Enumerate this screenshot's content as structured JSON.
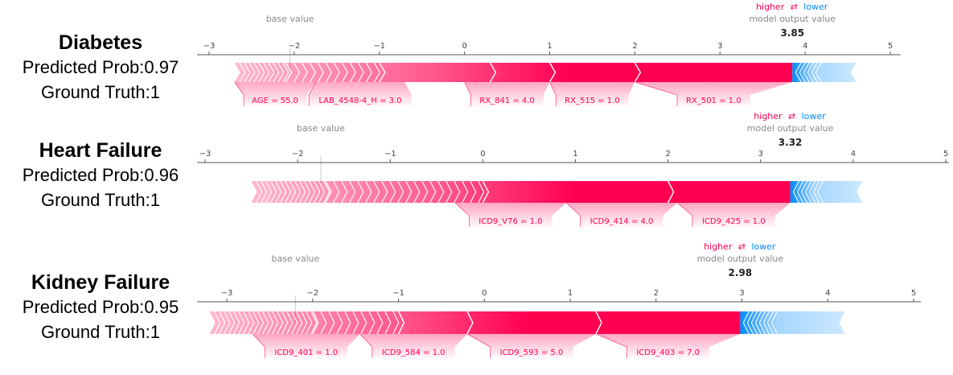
{
  "colors": {
    "positive": "#ff0051",
    "negative": "#008bfb",
    "axis": "#555555",
    "muted": "#888888"
  },
  "legend": {
    "higher": "higher",
    "arrow": "⇄",
    "lower": "lower"
  },
  "axis_labels": {
    "base": "base value",
    "output": "model output value"
  },
  "chart_data": [
    {
      "type": "force",
      "title": "Diabetes",
      "prob_text": "Predicted Prob:0.97",
      "truth_text": "Ground Truth:1",
      "output_value": 3.85,
      "output_label": "3.85",
      "base_value": -2.05,
      "ticks": [
        -3,
        -2,
        -1,
        0,
        1,
        2,
        3,
        4,
        5
      ],
      "tick_labels": [
        "−3",
        "−2",
        "−1",
        "0",
        "1",
        "2",
        "3",
        "4",
        "5"
      ],
      "xlim": [
        -3,
        5
      ],
      "bar_range": [
        -2.7,
        4.6
      ],
      "pos_seg": [
        -2.7,
        -2.1,
        -1.0,
        0.3,
        1.0,
        2.0,
        3.85
      ],
      "neg_seg": [
        3.85,
        4.05,
        4.6
      ],
      "labels": [
        {
          "text": "AGE = 55.0",
          "start": -2.7,
          "end": -1.75
        },
        {
          "text": "LAB_4548-4_H = 3.0",
          "start": -1.75,
          "end": -0.7
        },
        {
          "text": "RX_841 = 4.0",
          "start": 0.0,
          "end": 1.0
        },
        {
          "text": "RX_515 = 1.0",
          "start": 1.0,
          "end": 2.0
        },
        {
          "text": "RX_501 = 1.0",
          "start": 2.0,
          "end": 3.85
        }
      ]
    },
    {
      "type": "force",
      "title": "Heart Failure",
      "prob_text": "Predicted Prob:0.96",
      "truth_text": "Ground Truth:1",
      "output_value": 3.32,
      "output_label": "3.32",
      "base_value": -1.75,
      "ticks": [
        -3,
        -2,
        -1,
        0,
        1,
        2,
        3,
        4,
        5
      ],
      "tick_labels": [
        "−3",
        "−2",
        "−1",
        "0",
        "1",
        "2",
        "3",
        "4",
        "5"
      ],
      "xlim": [
        -3,
        5
      ],
      "bar_range": [
        -2.5,
        4.1
      ],
      "pos_seg": [
        -2.5,
        -1.7,
        0.0,
        2.0,
        3.32
      ],
      "neg_seg": [
        3.32,
        3.55,
        4.1
      ],
      "labels": [
        {
          "text": "ICD9_V76 = 1.0",
          "start": -0.3,
          "end": 0.9
        },
        {
          "text": "ICD9_414 = 4.0",
          "start": 0.9,
          "end": 2.1
        },
        {
          "text": "ICD9_425 = 1.0",
          "start": 2.1,
          "end": 3.32
        }
      ]
    },
    {
      "type": "force",
      "title": "Kidney Failure",
      "prob_text": "Predicted Prob:0.95",
      "truth_text": "Ground Truth:1",
      "output_value": 2.98,
      "output_label": "2.98",
      "base_value": -2.2,
      "ticks": [
        -3,
        -2,
        -1,
        0,
        1,
        2,
        3,
        4,
        5
      ],
      "tick_labels": [
        "−3",
        "−2",
        "−1",
        "0",
        "1",
        "2",
        "3",
        "4",
        "5"
      ],
      "xlim": [
        -3,
        5
      ],
      "bar_range": [
        -3.2,
        4.2
      ],
      "pos_seg": [
        -3.2,
        -2.0,
        -1.0,
        -0.2,
        1.3,
        2.98
      ],
      "neg_seg": [
        2.98,
        3.3,
        4.2
      ],
      "labels": [
        {
          "text": "ICD9_401 = 1.0",
          "start": -2.7,
          "end": -1.45
        },
        {
          "text": "ICD9_584 = 1.0",
          "start": -1.45,
          "end": -0.2
        },
        {
          "text": "ICD9_593 = 5.0",
          "start": -0.2,
          "end": 1.3
        },
        {
          "text": "ICD9_403 = 7.0",
          "start": 1.3,
          "end": 2.98
        }
      ]
    }
  ]
}
